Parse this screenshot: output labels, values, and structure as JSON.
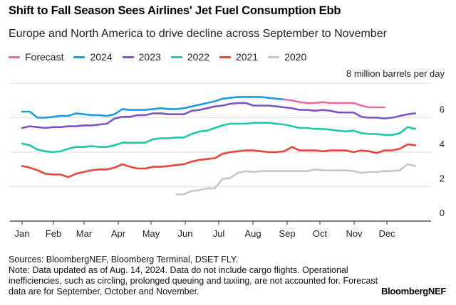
{
  "chart_data": {
    "type": "line",
    "title": "Shift to Fall Season Sees Airlines' Jet Fuel Consumption Ebb",
    "subtitle": "Europe and North America to drive decline across September to November",
    "ylabel": "million barrels per day",
    "ylim": [
      0,
      8
    ],
    "y_ticks": [
      "0",
      "2",
      "4",
      "6",
      "8"
    ],
    "x_unit": "week of year",
    "x_ticks": [
      "Jan",
      "Feb",
      "Mar",
      "Apr",
      "May",
      "Jun",
      "Jul",
      "Aug",
      "Sep",
      "Oct",
      "Nov",
      "Dec"
    ],
    "grid": true,
    "legend_position": "top-left",
    "series": [
      {
        "name": "Forecast",
        "color": "#e86aa6",
        "values": [
          null,
          null,
          null,
          null,
          null,
          null,
          null,
          null,
          null,
          null,
          null,
          null,
          null,
          null,
          null,
          null,
          null,
          null,
          null,
          null,
          null,
          null,
          null,
          null,
          null,
          null,
          null,
          null,
          null,
          null,
          null,
          null,
          null,
          null,
          7.05,
          7.0,
          6.9,
          6.85,
          6.85,
          6.9,
          6.85,
          6.85,
          6.85,
          6.85,
          6.7,
          6.6,
          6.6,
          6.6,
          null,
          null,
          null,
          null
        ]
      },
      {
        "name": "2024",
        "color": "#1e9be0",
        "values": [
          6.35,
          6.35,
          6.0,
          6.0,
          6.05,
          6.1,
          6.1,
          6.25,
          6.2,
          6.15,
          6.15,
          6.1,
          6.2,
          6.5,
          6.45,
          6.45,
          6.45,
          6.5,
          6.55,
          6.5,
          6.5,
          6.55,
          6.65,
          6.75,
          6.85,
          6.95,
          7.1,
          7.15,
          7.2,
          7.2,
          7.2,
          7.2,
          7.15,
          7.1,
          7.05,
          null,
          null,
          null,
          null,
          null,
          null,
          null,
          null,
          null,
          null,
          null,
          null,
          null,
          null,
          null,
          null,
          null
        ]
      },
      {
        "name": "2023",
        "color": "#7b55c4",
        "values": [
          5.4,
          5.5,
          5.45,
          5.4,
          5.45,
          5.45,
          5.5,
          5.5,
          5.55,
          5.55,
          5.6,
          5.65,
          5.95,
          6.05,
          6.05,
          6.15,
          6.15,
          6.25,
          6.25,
          6.2,
          6.2,
          6.2,
          6.4,
          6.45,
          6.55,
          6.65,
          6.7,
          6.8,
          6.85,
          6.85,
          6.7,
          6.7,
          6.7,
          6.65,
          6.6,
          6.55,
          6.45,
          6.45,
          6.4,
          6.45,
          6.4,
          6.3,
          6.3,
          6.3,
          6.05,
          6.0,
          6.0,
          5.95,
          6.0,
          6.1,
          6.2,
          6.25
        ]
      },
      {
        "name": "2022",
        "color": "#1fc9a6",
        "values": [
          4.5,
          4.4,
          4.15,
          4.05,
          4.0,
          4.05,
          4.2,
          4.3,
          4.3,
          4.35,
          4.3,
          4.3,
          4.4,
          4.55,
          4.55,
          4.55,
          4.55,
          4.75,
          4.8,
          4.8,
          4.85,
          4.85,
          5.05,
          5.2,
          5.25,
          5.4,
          5.55,
          5.65,
          5.65,
          5.65,
          5.7,
          5.7,
          5.7,
          5.65,
          5.6,
          5.5,
          5.4,
          5.4,
          5.35,
          5.35,
          5.3,
          5.25,
          5.2,
          5.25,
          5.1,
          5.05,
          5.05,
          5.0,
          5.0,
          5.1,
          5.45,
          5.35
        ]
      },
      {
        "name": "2021",
        "color": "#e8463a",
        "values": [
          3.2,
          3.1,
          2.95,
          2.75,
          2.7,
          2.7,
          2.55,
          2.75,
          2.85,
          2.95,
          3.0,
          3.0,
          3.1,
          3.3,
          3.15,
          3.05,
          3.05,
          3.15,
          3.15,
          3.2,
          3.25,
          3.3,
          3.45,
          3.55,
          3.6,
          3.65,
          3.9,
          4.0,
          4.05,
          4.1,
          4.1,
          4.05,
          4.0,
          4.0,
          4.05,
          4.3,
          4.1,
          4.1,
          4.1,
          4.05,
          4.1,
          4.1,
          4.1,
          4.0,
          4.1,
          4.05,
          3.95,
          4.1,
          4.1,
          4.2,
          4.45,
          4.4
        ]
      },
      {
        "name": "2020",
        "color": "#c6c6c6",
        "values": [
          null,
          null,
          null,
          null,
          null,
          null,
          null,
          null,
          null,
          null,
          null,
          null,
          null,
          null,
          null,
          null,
          null,
          null,
          null,
          null,
          1.55,
          1.55,
          1.75,
          1.8,
          1.9,
          1.9,
          2.45,
          2.5,
          2.8,
          2.9,
          2.85,
          2.9,
          2.9,
          2.9,
          2.9,
          2.9,
          2.9,
          2.9,
          3.0,
          2.95,
          2.95,
          2.95,
          2.95,
          2.9,
          2.8,
          2.85,
          2.85,
          2.9,
          2.9,
          2.95,
          3.3,
          3.2
        ]
      }
    ]
  },
  "footer": {
    "sources": "Sources: BloombergNEF, Bloomberg Terminal, DSET FLY.",
    "note": "Note: Data updated as of Aug. 14, 2024. Data do not include cargo flights. Operational inefficiencies, such as circling, prolonged queuing and taxiing, are not accounted for. Forecast data are for September, October and November.",
    "brand": "BloombergNEF"
  }
}
